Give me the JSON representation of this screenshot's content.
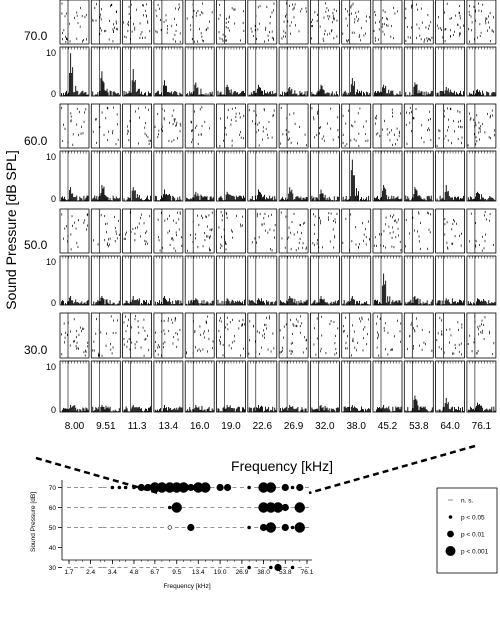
{
  "raster_figure": {
    "ylabel": "Sound Pressure [dB SPL]",
    "xlabel": "Frequency [kHz]",
    "levels": [
      "70.0",
      "60.0",
      "50.0",
      "30.0"
    ],
    "frequencies": [
      "8.00",
      "9.51",
      "11.3",
      "13.4",
      "16.0",
      "19.0",
      "22.6",
      "26.9",
      "32.0",
      "38.0",
      "45.2",
      "53.8",
      "64.0",
      "76.1"
    ],
    "psth_ymax_label": "10",
    "psth_ymin_label": "0",
    "psth_peak_relative": [
      [
        0.95,
        0.55,
        0.6,
        0.35,
        0.3,
        0.25,
        0.25,
        0.2,
        0.25,
        0.4,
        0.25,
        0.3,
        0.2,
        0.15
      ],
      [
        0.3,
        0.35,
        0.3,
        0.25,
        0.2,
        0.2,
        0.25,
        0.3,
        0.25,
        0.9,
        0.35,
        0.3,
        0.35,
        0.2
      ],
      [
        0.2,
        0.2,
        0.2,
        0.2,
        0.15,
        0.15,
        0.15,
        0.2,
        0.2,
        0.2,
        0.7,
        0.2,
        0.15,
        0.15
      ],
      [
        0.15,
        0.15,
        0.15,
        0.15,
        0.15,
        0.15,
        0.15,
        0.15,
        0.15,
        0.15,
        0.15,
        0.35,
        0.3,
        0.2
      ]
    ]
  },
  "chart_data": {
    "type": "scatter",
    "xlabel": "Frequency [kHz]",
    "ylabel": "Sound Pressure [dB]",
    "x_ticks": [
      "1.7",
      "2.4",
      "3.4",
      "4.8",
      "6.7",
      "9.5",
      "13.4",
      "19.0",
      "26.9",
      "38.0",
      "53.8",
      "76.1"
    ],
    "y_ticks": [
      "70",
      "60",
      "50",
      "40",
      "30"
    ],
    "ylim": [
      30,
      70
    ],
    "grid": "dashed horizontal lines at tested levels",
    "legend": {
      "placement": "right",
      "entries": [
        {
          "marker": "dash",
          "label": "n. s."
        },
        {
          "marker": "small",
          "label": "p < 0.05"
        },
        {
          "marker": "medium",
          "label": "p < 0.01"
        },
        {
          "marker": "large",
          "label": "p < 0.001"
        }
      ]
    },
    "levels_tested": [
      70,
      60,
      50,
      30
    ],
    "frequency_axis": [
      1.7,
      1.9,
      2.1,
      2.4,
      2.8,
      3.0,
      3.4,
      3.8,
      4.2,
      4.8,
      5.4,
      6.0,
      6.7,
      7.5,
      8.5,
      9.5,
      10.6,
      11.9,
      13.4,
      15.0,
      16.8,
      19.0,
      21.4,
      23.9,
      26.9,
      30.2,
      33.8,
      38.0,
      42.7,
      47.9,
      53.8,
      60.4,
      67.8,
      76.1
    ],
    "significance_grid": [
      [
        "ns",
        "ns",
        "ns",
        "ns",
        "ns",
        "ns",
        "p05",
        "p05",
        "p05",
        "p05",
        "p01",
        "p01",
        "p001",
        "p001",
        "p001",
        "p001",
        "p001",
        "p01",
        "p001",
        "p001",
        "ns",
        "p01",
        "p01",
        "ns",
        "ns",
        "p05",
        "ns",
        "p001",
        "p001",
        "ns",
        "p01",
        "p05",
        "p01",
        "ns"
      ],
      [
        "ns",
        "ns",
        "ns",
        "ns",
        "ns",
        "ns",
        "ns",
        "ns",
        "ns",
        "ns",
        "ns",
        "ns",
        "ns",
        "ns",
        "p05",
        "p001",
        "ns",
        "ns",
        "ns",
        "ns",
        "ns",
        "ns",
        "ns",
        "ns",
        "ns",
        "ns",
        "ns",
        "p001",
        "p001",
        "p001",
        "p01",
        "ns",
        "p001",
        "ns"
      ],
      [
        "ns",
        "ns",
        "ns",
        "ns",
        "ns",
        "ns",
        "ns",
        "ns",
        "ns",
        "ns",
        "ns",
        "ns",
        "ns",
        "ns",
        "open",
        "ns",
        "ns",
        "p01",
        "ns",
        "ns",
        "ns",
        "ns",
        "ns",
        "ns",
        "ns",
        "p05",
        "ns",
        "p01",
        "p001",
        "ns",
        "p01",
        "p05",
        "p001",
        "ns"
      ],
      [
        "ns",
        "ns",
        "ns",
        "ns",
        "ns",
        "ns",
        "ns",
        "ns",
        "ns",
        "ns",
        "ns",
        "ns",
        "ns",
        "ns",
        "ns",
        "ns",
        "ns",
        "ns",
        "ns",
        "ns",
        "ns",
        "ns",
        "ns",
        "ns",
        "ns",
        "p05",
        "ns",
        "ns",
        "p05",
        "p01",
        "ns",
        "p05",
        "ns",
        "ns"
      ]
    ]
  }
}
